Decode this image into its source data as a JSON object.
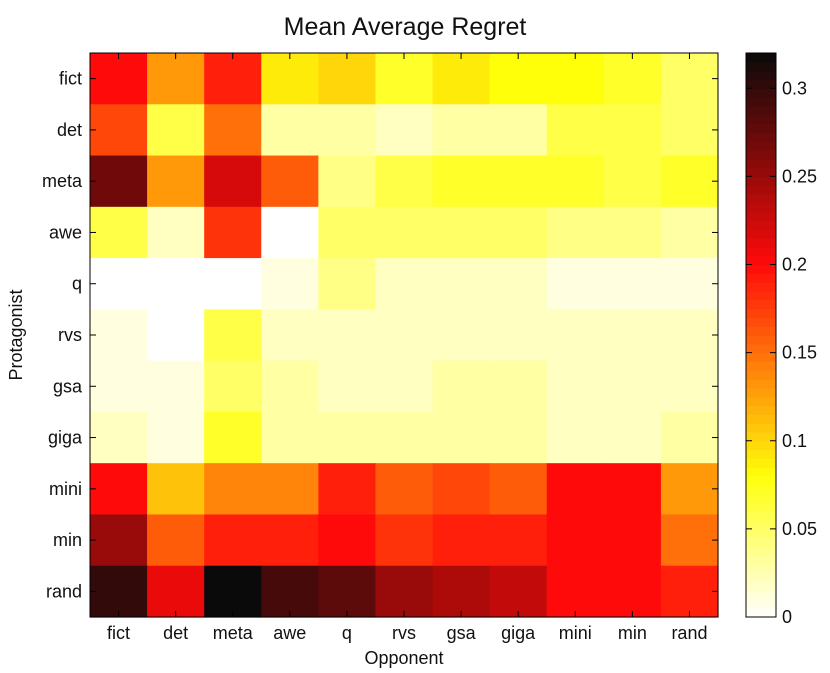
{
  "chart_data": {
    "type": "heatmap",
    "title": "Mean Average Regret",
    "xlabel": "Opponent",
    "ylabel": "Protagonist",
    "x_categories": [
      "fict",
      "det",
      "meta",
      "awe",
      "q",
      "rvs",
      "gsa",
      "giga",
      "mini",
      "min",
      "rand"
    ],
    "y_categories": [
      "fict",
      "det",
      "meta",
      "awe",
      "q",
      "rvs",
      "gsa",
      "giga",
      "mini",
      "min",
      "rand"
    ],
    "values": [
      [
        0.2,
        0.13,
        0.19,
        0.09,
        0.1,
        0.07,
        0.09,
        0.08,
        0.08,
        0.07,
        0.05
      ],
      [
        0.17,
        0.06,
        0.15,
        0.03,
        0.03,
        0.02,
        0.03,
        0.03,
        0.06,
        0.06,
        0.05
      ],
      [
        0.27,
        0.13,
        0.22,
        0.16,
        0.04,
        0.06,
        0.07,
        0.07,
        0.07,
        0.06,
        0.07
      ],
      [
        0.06,
        0.02,
        0.18,
        0.0,
        0.05,
        0.05,
        0.05,
        0.05,
        0.04,
        0.04,
        0.03
      ],
      [
        0.0,
        0.0,
        0.0,
        0.01,
        0.04,
        0.02,
        0.02,
        0.02,
        0.01,
        0.01,
        0.01
      ],
      [
        0.01,
        0.0,
        0.06,
        0.02,
        0.02,
        0.02,
        0.02,
        0.02,
        0.02,
        0.02,
        0.02
      ],
      [
        0.01,
        0.01,
        0.05,
        0.03,
        0.02,
        0.02,
        0.03,
        0.03,
        0.02,
        0.02,
        0.02
      ],
      [
        0.02,
        0.01,
        0.07,
        0.03,
        0.03,
        0.03,
        0.03,
        0.03,
        0.02,
        0.02,
        0.03
      ],
      [
        0.2,
        0.11,
        0.14,
        0.14,
        0.19,
        0.16,
        0.17,
        0.16,
        0.2,
        0.2,
        0.13
      ],
      [
        0.25,
        0.16,
        0.19,
        0.19,
        0.2,
        0.18,
        0.19,
        0.19,
        0.2,
        0.2,
        0.15
      ],
      [
        0.3,
        0.21,
        0.32,
        0.29,
        0.28,
        0.25,
        0.24,
        0.23,
        0.2,
        0.2,
        0.19
      ]
    ],
    "colorbar": {
      "colormap": "hot (reversed)",
      "range": [
        0,
        0.32
      ],
      "ticks": [
        0,
        0.05,
        0.1,
        0.15,
        0.2,
        0.25,
        0.3
      ],
      "tick_labels": [
        "0",
        "0.05",
        "0.1",
        "0.15",
        "0.2",
        "0.25",
        "0.3"
      ]
    }
  }
}
